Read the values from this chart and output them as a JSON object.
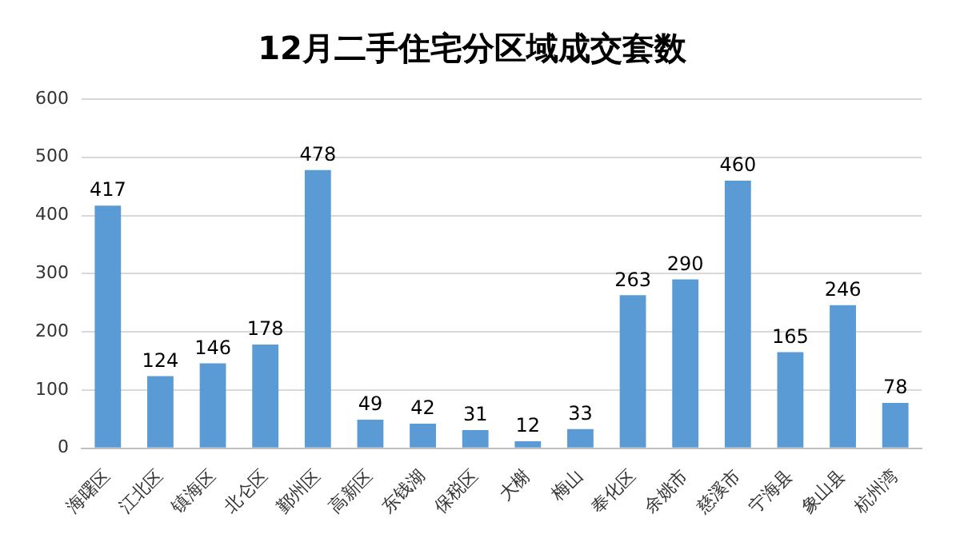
{
  "chart_data": {
    "type": "bar",
    "title": "12月二手住宅分区域成交套数",
    "categories": [
      "海曙区",
      "江北区",
      "镇海区",
      "北仑区",
      "鄞州区",
      "高新区",
      "东钱湖",
      "保税区",
      "大榭",
      "梅山",
      "奉化区",
      "余姚市",
      "慈溪市",
      "宁海县",
      "象山县",
      "杭州湾"
    ],
    "values": [
      417,
      124,
      146,
      178,
      478,
      49,
      42,
      31,
      12,
      33,
      263,
      290,
      460,
      165,
      246,
      78
    ],
    "color": "#5b9bd5",
    "ylim": [
      0,
      600
    ],
    "yticks": [
      0,
      100,
      200,
      300,
      400,
      500,
      600
    ],
    "grid": "y",
    "data_labels": true,
    "legend": false
  }
}
